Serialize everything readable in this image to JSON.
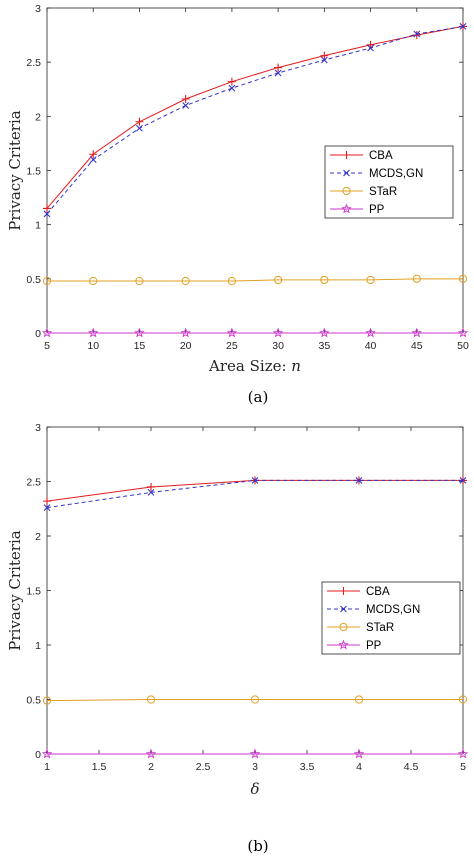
{
  "chart_data": [
    {
      "type": "line",
      "caption": "(a)",
      "xlabel_text": "Area Size: ",
      "xlabel_var": "n",
      "ylabel": "Privacy Criteria",
      "x": [
        5,
        10,
        15,
        20,
        25,
        30,
        35,
        40,
        45,
        50
      ],
      "xlim": [
        5,
        50
      ],
      "ylim": [
        0,
        3
      ],
      "xticks": [
        5,
        10,
        15,
        20,
        25,
        30,
        35,
        40,
        45,
        50
      ],
      "yticks": [
        0,
        0.5,
        1,
        1.5,
        2,
        2.5,
        3
      ],
      "grid": false,
      "legend_position": "right-middle",
      "series": [
        {
          "name": "CBA",
          "color": "#e41a1c",
          "marker": "plus",
          "dash": "none",
          "values": [
            1.15,
            1.65,
            1.95,
            2.16,
            2.32,
            2.45,
            2.56,
            2.66,
            2.75,
            2.83
          ]
        },
        {
          "name": "MCDS,GN",
          "color": "#3333cc",
          "marker": "x",
          "dash": "4,3",
          "values": [
            1.1,
            1.6,
            1.89,
            2.1,
            2.26,
            2.4,
            2.52,
            2.63,
            2.76,
            2.83
          ]
        },
        {
          "name": "STaR",
          "color": "#e0a020",
          "marker": "circle",
          "dash": "none",
          "values": [
            0.48,
            0.48,
            0.48,
            0.48,
            0.48,
            0.49,
            0.49,
            0.49,
            0.5,
            0.5
          ]
        },
        {
          "name": "PP",
          "color": "#cc33cc",
          "marker": "star",
          "dash": "none",
          "values": [
            0,
            0,
            0,
            0,
            0,
            0,
            0,
            0,
            0,
            0
          ]
        }
      ]
    },
    {
      "type": "line",
      "caption": "(b)",
      "xlabel_text": "",
      "xlabel_var": "δ",
      "ylabel": "Privacy Criteria",
      "x": [
        1,
        2,
        3,
        4,
        5
      ],
      "xlim": [
        1,
        5
      ],
      "ylim": [
        0,
        3
      ],
      "xticks": [
        1,
        1.5,
        2,
        2.5,
        3,
        3.5,
        4,
        4.5,
        5
      ],
      "yticks": [
        0,
        0.5,
        1,
        1.5,
        2,
        2.5,
        3
      ],
      "grid": false,
      "legend_position": "right-middle",
      "series": [
        {
          "name": "CBA",
          "color": "#e41a1c",
          "marker": "plus",
          "dash": "none",
          "values": [
            2.32,
            2.45,
            2.51,
            2.51,
            2.51
          ]
        },
        {
          "name": "MCDS,GN",
          "color": "#3333cc",
          "marker": "x",
          "dash": "4,3",
          "values": [
            2.26,
            2.4,
            2.51,
            2.51,
            2.51
          ]
        },
        {
          "name": "STaR",
          "color": "#e0a020",
          "marker": "circle",
          "dash": "none",
          "values": [
            0.49,
            0.5,
            0.5,
            0.5,
            0.5
          ]
        },
        {
          "name": "PP",
          "color": "#cc33cc",
          "marker": "star",
          "dash": "none",
          "values": [
            0,
            0,
            0,
            0,
            0
          ]
        }
      ]
    }
  ]
}
